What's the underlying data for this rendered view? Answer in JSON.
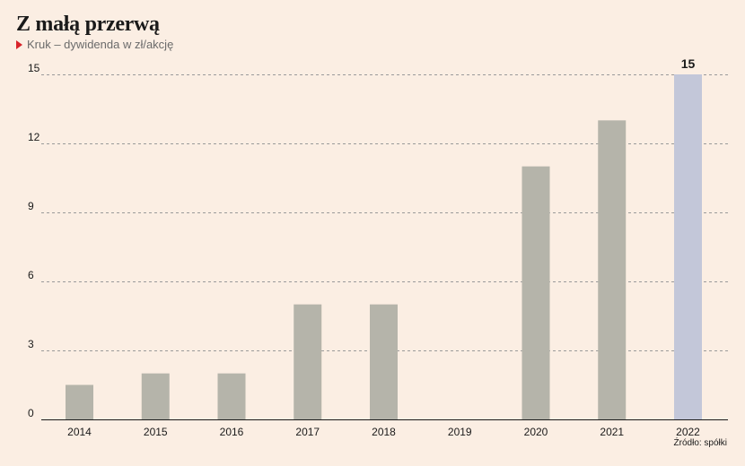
{
  "title": "Z małą przerwą",
  "subtitle": "Kruk – dywidenda w zł/akcję",
  "source": "Źródło: spółki",
  "colors": {
    "background": "#fbeee3",
    "bar": "#b5b4aa",
    "highlight": "#c3c7d9",
    "accent": "#d8232a"
  },
  "chart_data": {
    "type": "bar",
    "categories": [
      "2014",
      "2015",
      "2016",
      "2017",
      "2018",
      "2019",
      "2020",
      "2021",
      "2022"
    ],
    "values": [
      1.5,
      2,
      2,
      5,
      5,
      0,
      11,
      13,
      15
    ],
    "highlight_index": 8,
    "data_labels": [
      {
        "index": 8,
        "text": "15"
      }
    ],
    "yticks": [
      0,
      3,
      6,
      9,
      12,
      15
    ],
    "ylim": [
      0,
      15
    ],
    "grid": true,
    "legend": "none"
  }
}
